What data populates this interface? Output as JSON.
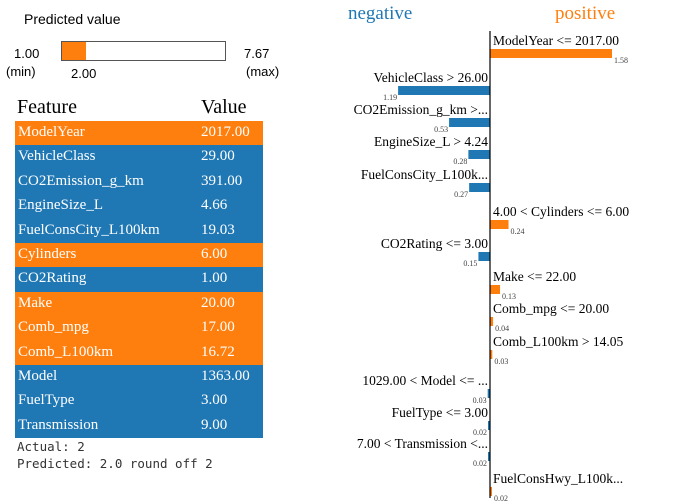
{
  "predicted": {
    "title": "Predicted value",
    "min": "1.00",
    "min_label": "(min)",
    "max": "7.67",
    "max_label": "(max)",
    "current": "2.00",
    "fraction": 0.15,
    "color": "#ff7f0e"
  },
  "table": {
    "headers": [
      "Feature",
      "Value"
    ],
    "rows": [
      {
        "feature": "ModelYear",
        "value": "2017.00",
        "side": "positive"
      },
      {
        "feature": "VehicleClass",
        "value": "29.00",
        "side": "negative"
      },
      {
        "feature": "CO2Emission_g_km",
        "value": "391.00",
        "side": "negative"
      },
      {
        "feature": "EngineSize_L",
        "value": "4.66",
        "side": "negative"
      },
      {
        "feature": "FuelConsCity_L100km",
        "value": "19.03",
        "side": "negative"
      },
      {
        "feature": "Cylinders",
        "value": "6.00",
        "side": "positive"
      },
      {
        "feature": "CO2Rating",
        "value": "1.00",
        "side": "negative"
      },
      {
        "feature": "Make",
        "value": "20.00",
        "side": "positive"
      },
      {
        "feature": "Comb_mpg",
        "value": "17.00",
        "side": "positive"
      },
      {
        "feature": "Comb_L100km",
        "value": "16.72",
        "side": "positive"
      },
      {
        "feature": "Model",
        "value": "1363.00",
        "side": "negative"
      },
      {
        "feature": "FuelType",
        "value": "3.00",
        "side": "negative"
      },
      {
        "feature": "Transmission",
        "value": "9.00",
        "side": "negative"
      }
    ]
  },
  "result": {
    "actual": "Actual: 2",
    "predicted": "Predicted: 2.0 round off 2"
  },
  "colors": {
    "positive": "#ff7f0e",
    "negative": "#1f77b4"
  },
  "chart_data": {
    "type": "bar",
    "orientation": "diverging-horizontal",
    "negative_label": "negative",
    "positive_label": "positive",
    "items": [
      {
        "label": "ModelYear <= 2017.00",
        "value": 1.58,
        "value_label": "1.58",
        "side": "positive"
      },
      {
        "label": "VehicleClass > 26.00",
        "value": 1.19,
        "value_label": "1.19",
        "side": "negative"
      },
      {
        "label": "CO2Emission_g_km >...",
        "value": 0.53,
        "value_label": "0.53",
        "side": "negative"
      },
      {
        "label": "EngineSize_L > 4.24",
        "value": 0.28,
        "value_label": "0.28",
        "side": "negative"
      },
      {
        "label": "FuelConsCity_L100k...",
        "value": 0.27,
        "value_label": "0.27",
        "side": "negative"
      },
      {
        "label": "4.00 < Cylinders <= 6.00",
        "value": 0.24,
        "value_label": "0.24",
        "side": "positive"
      },
      {
        "label": "CO2Rating <= 3.00",
        "value": 0.15,
        "value_label": "0.15",
        "side": "negative"
      },
      {
        "label": "Make <= 22.00",
        "value": 0.13,
        "value_label": "0.13",
        "side": "positive"
      },
      {
        "label": "Comb_mpg <= 20.00",
        "value": 0.04,
        "value_label": "0.04",
        "side": "positive"
      },
      {
        "label": "Comb_L100km > 14.05",
        "value": 0.03,
        "value_label": "0.03",
        "side": "positive"
      },
      {
        "label": "1029.00 < Model <= ...",
        "value": 0.03,
        "value_label": "0.03",
        "side": "negative"
      },
      {
        "label": "FuelType <= 3.00",
        "value": 0.02,
        "value_label": "0.02",
        "side": "negative"
      },
      {
        "label": "7.00 < Transmission <...",
        "value": 0.02,
        "value_label": "0.02",
        "side": "negative"
      },
      {
        "label": "FuelConsHwy_L100k...",
        "value": 0.02,
        "value_label": "0.02",
        "side": "positive"
      }
    ],
    "max_value": 1.58
  }
}
